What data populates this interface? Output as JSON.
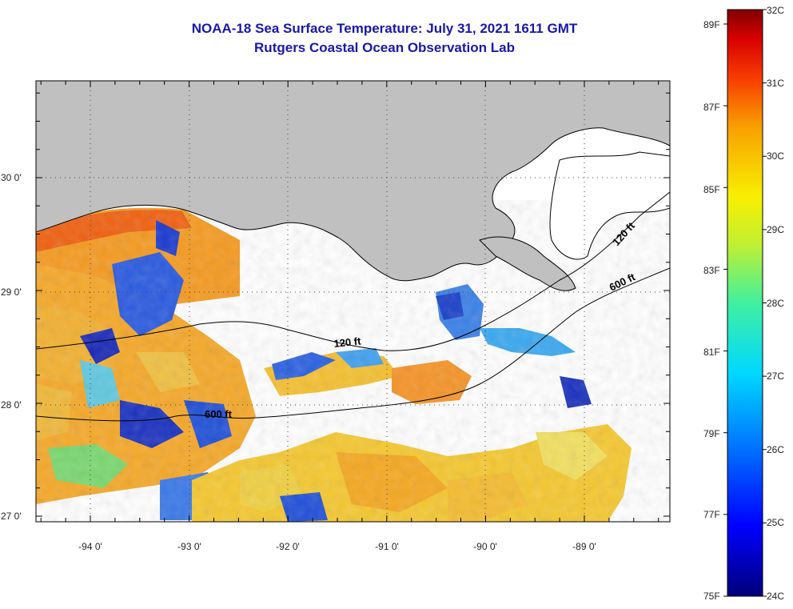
{
  "title": "NOAA-18 Sea Surface Temperature:  July 31, 2021 1611 GMT",
  "subtitle": "Rutgers Coastal Ocean Observation Lab",
  "axes": {
    "lat_labels": [
      "30 0'",
      "29 0'",
      "28 0'",
      "27 0'"
    ],
    "lon_labels": [
      "-94 0'",
      "-93 0'",
      "-92 0'",
      "-91 0'",
      "-90 0'",
      "-89 0'"
    ],
    "lat_range": [
      27,
      30.9
    ],
    "lon_range": [
      -94.5,
      -88.1
    ]
  },
  "contours": {
    "shelf_120": "120 ft",
    "shelf_600": "600 ft",
    "shelf_120_ne": "120 ft",
    "shelf_600_ne": "600 ft"
  },
  "colorbar": {
    "f_labels": [
      "89F",
      "87F",
      "85F",
      "83F",
      "81F",
      "79F",
      "77F",
      "75F"
    ],
    "c_labels": [
      "32C",
      "31C",
      "30C",
      "29C",
      "28C",
      "27C",
      "26C",
      "25C",
      "24C"
    ],
    "range_c": [
      24,
      32
    ],
    "colors": [
      "#00007a",
      "#0000ff",
      "#0060ff",
      "#00c8ff",
      "#30e8c0",
      "#a8f040",
      "#f8f000",
      "#f8a000",
      "#f85000",
      "#e80000",
      "#800000"
    ]
  },
  "colors": {
    "land": "#c0c0c0",
    "cloud": "#ffffff",
    "title": "#1818a8"
  }
}
